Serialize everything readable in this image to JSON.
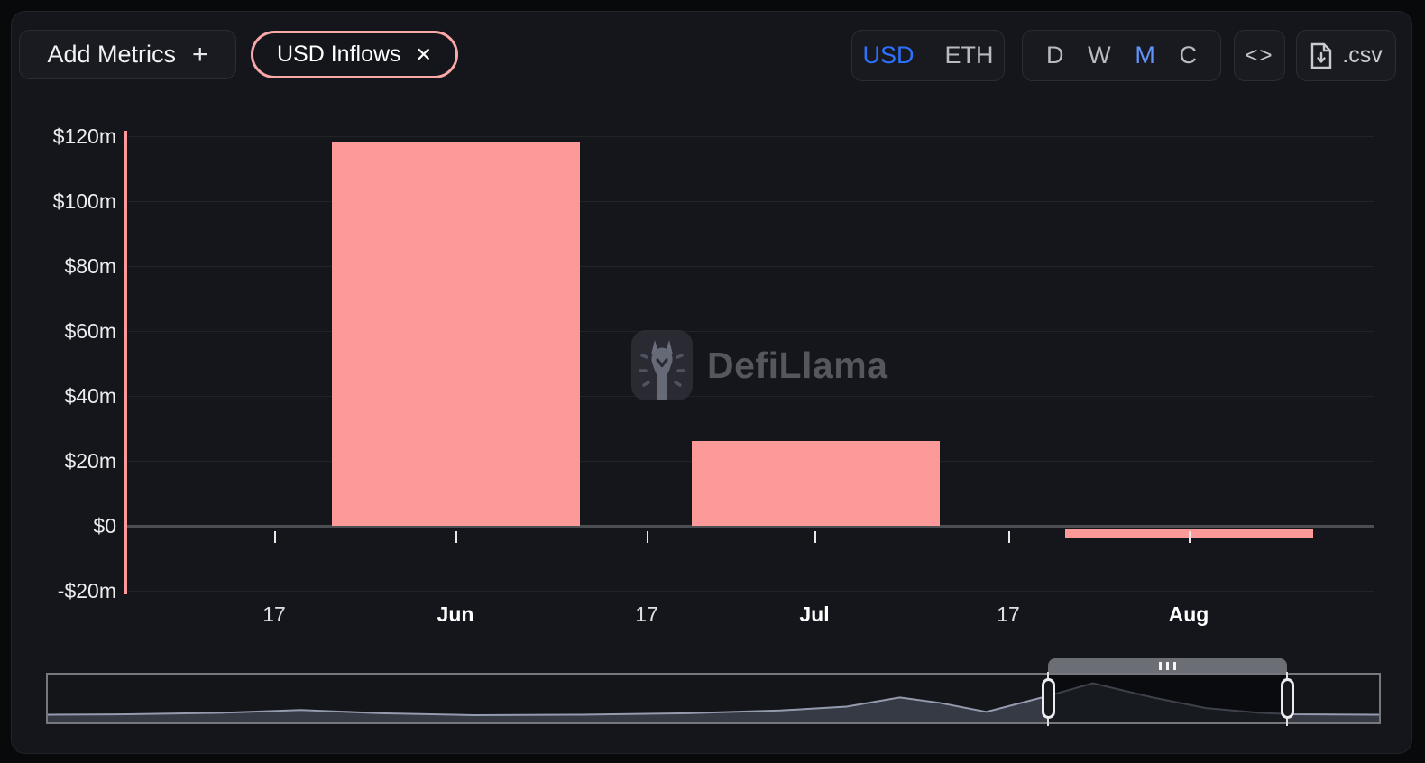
{
  "toolbar": {
    "add_metrics": {
      "label": "Add Metrics",
      "plus": "+"
    },
    "metric_pill": {
      "label": "USD Inflows",
      "close": "✕"
    },
    "currency": {
      "options": [
        "USD",
        "ETH"
      ],
      "selected": "USD"
    },
    "intervals": {
      "options": [
        "D",
        "W",
        "M",
        "C"
      ],
      "selected": "M"
    },
    "embed_label": "<>",
    "csv_label": ".csv"
  },
  "watermark": {
    "text": "DefiLlama"
  },
  "colors": {
    "bar": "#fc9a9a",
    "pill_border": "#f9a8a8",
    "accent_blue": "#2d72ff",
    "interval_blue": "#6193f8",
    "panel_bg": "#15161b"
  },
  "chart_data": {
    "type": "bar",
    "title": "USD Inflows",
    "unit": "USD (millions)",
    "categories": [
      "Jun",
      "Jul",
      "Aug"
    ],
    "values": [
      118,
      26,
      -3
    ],
    "ylim": [
      -20,
      120
    ],
    "grid": true,
    "yticks": [
      {
        "label": "$120m",
        "value": 120
      },
      {
        "label": "$100m",
        "value": 100
      },
      {
        "label": "$80m",
        "value": 80
      },
      {
        "label": "$60m",
        "value": 60
      },
      {
        "label": "$40m",
        "value": 40
      },
      {
        "label": "$20m",
        "value": 20
      },
      {
        "label": "$0",
        "value": 0
      },
      {
        "label": "-$20m",
        "value": -20
      }
    ],
    "x_axis_labels": [
      {
        "text": "17",
        "bold": false
      },
      {
        "text": "Jun",
        "bold": true
      },
      {
        "text": "17",
        "bold": false
      },
      {
        "text": "Jul",
        "bold": true
      },
      {
        "text": "17",
        "bold": false
      },
      {
        "text": "Aug",
        "bold": true
      }
    ],
    "navigator": {
      "points": [
        [
          0.0,
          0.16
        ],
        [
          0.06,
          0.17
        ],
        [
          0.13,
          0.2
        ],
        [
          0.19,
          0.26
        ],
        [
          0.25,
          0.19
        ],
        [
          0.32,
          0.15
        ],
        [
          0.4,
          0.16
        ],
        [
          0.48,
          0.19
        ],
        [
          0.55,
          0.25
        ],
        [
          0.6,
          0.33
        ],
        [
          0.64,
          0.52
        ],
        [
          0.67,
          0.41
        ],
        [
          0.705,
          0.22
        ],
        [
          0.751,
          0.55
        ],
        [
          0.785,
          0.82
        ],
        [
          0.83,
          0.52
        ],
        [
          0.87,
          0.3
        ],
        [
          0.91,
          0.2
        ],
        [
          0.935,
          0.17
        ],
        [
          1.0,
          0.16
        ]
      ],
      "selection": {
        "start": 0.751,
        "end": 0.93
      }
    }
  }
}
